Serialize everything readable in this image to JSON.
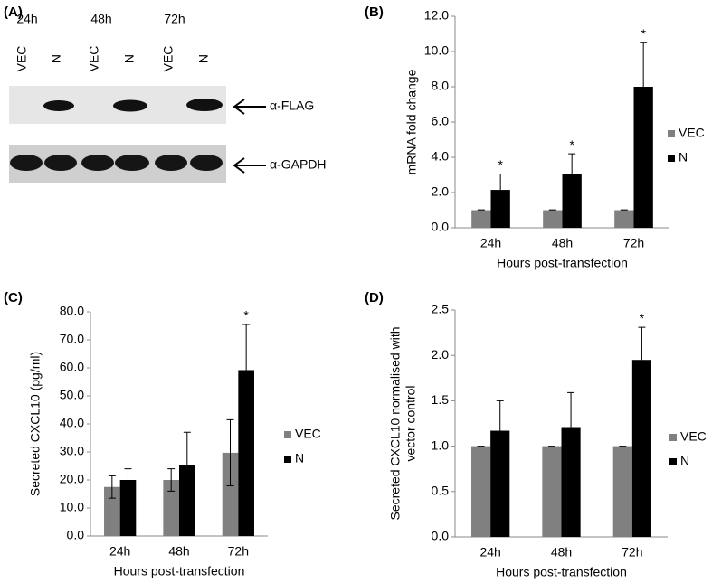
{
  "blot": {
    "panel_label": "(A)",
    "timepoints": [
      "24h",
      "48h",
      "72h"
    ],
    "lanes": [
      "VEC",
      "N",
      "VEC",
      "N",
      "VEC",
      "N"
    ],
    "bands": [
      "α-FLAG",
      "α-GAPDH"
    ]
  },
  "chart_data": [
    {
      "type": "bar",
      "panel_label": "(B)",
      "ylabel": [
        "mRNA fold change"
      ],
      "xlabel": "Hours post-transfection",
      "categories": [
        "24h",
        "48h",
        "72h"
      ],
      "series": [
        {
          "name": "VEC",
          "color": "#808080",
          "values": [
            1.0,
            1.0,
            1.0
          ],
          "errors": [
            0.02,
            0.02,
            0.02
          ],
          "significance": [
            null,
            null,
            null
          ]
        },
        {
          "name": "N",
          "color": "#000000",
          "values": [
            2.15,
            3.05,
            8.0
          ],
          "errors": [
            0.9,
            1.15,
            2.5
          ],
          "significance": [
            "*",
            "*",
            "*"
          ]
        }
      ],
      "error_style": "upper",
      "legend": "right",
      "ylim": [
        0,
        12
      ],
      "yticks": [
        {
          "value": 0,
          "label": "0.0"
        },
        {
          "value": 2,
          "label": "2.0"
        },
        {
          "value": 4,
          "label": "4.0"
        },
        {
          "value": 6,
          "label": "6.0"
        },
        {
          "value": 8,
          "label": "8.0"
        },
        {
          "value": 10,
          "label": "10.0"
        },
        {
          "value": 12,
          "label": "12.0"
        }
      ]
    },
    {
      "type": "bar",
      "panel_label": "(C)",
      "ylabel": [
        "Secreted CXCL10 (pg/ml)"
      ],
      "xlabel": "Hours post-transfection",
      "categories": [
        "24h",
        "48h",
        "72h"
      ],
      "series": [
        {
          "name": "VEC",
          "color": "#808080",
          "values": [
            17.5,
            20.0,
            29.7
          ],
          "errors": [
            4.0,
            4.0,
            11.8
          ],
          "significance": [
            null,
            null,
            null
          ]
        },
        {
          "name": "N",
          "color": "#000000",
          "values": [
            20.0,
            25.3,
            59.2
          ],
          "errors": [
            4.0,
            11.7,
            16.3
          ],
          "significance": [
            null,
            null,
            "*"
          ]
        }
      ],
      "error_style": "both",
      "legend": "right",
      "ylim": [
        0,
        80
      ],
      "yticks": [
        {
          "value": 0,
          "label": "0.0"
        },
        {
          "value": 10,
          "label": "10.0"
        },
        {
          "value": 20,
          "label": "20.0"
        },
        {
          "value": 30,
          "label": "30.0"
        },
        {
          "value": 40,
          "label": "40.0"
        },
        {
          "value": 50,
          "label": "50.0"
        },
        {
          "value": 60,
          "label": "60.0"
        },
        {
          "value": 70,
          "label": "70.0"
        },
        {
          "value": 80,
          "label": "80.0"
        }
      ]
    },
    {
      "type": "bar",
      "panel_label": "(D)",
      "ylabel": [
        "Secreted CXCL10 normalised with",
        "vector control"
      ],
      "xlabel": "Hours post-transfection",
      "categories": [
        "24h",
        "48h",
        "72h"
      ],
      "series": [
        {
          "name": "VEC",
          "color": "#808080",
          "values": [
            1.0,
            1.0,
            1.0
          ],
          "errors": [
            0,
            0,
            0
          ],
          "significance": [
            null,
            null,
            null
          ]
        },
        {
          "name": "N",
          "color": "#000000",
          "values": [
            1.17,
            1.21,
            1.95
          ],
          "errors": [
            0.33,
            0.38,
            0.36
          ],
          "significance": [
            null,
            null,
            "*"
          ]
        }
      ],
      "error_style": "upper",
      "legend": "right",
      "ylim": [
        0,
        2.5
      ],
      "yticks": [
        {
          "value": 0,
          "label": "0.0"
        },
        {
          "value": 0.5,
          "label": "0.5"
        },
        {
          "value": 1,
          "label": "1.0"
        },
        {
          "value": 1.5,
          "label": "1.5"
        },
        {
          "value": 2,
          "label": "2.0"
        },
        {
          "value": 2.5,
          "label": "2.5"
        }
      ]
    }
  ]
}
